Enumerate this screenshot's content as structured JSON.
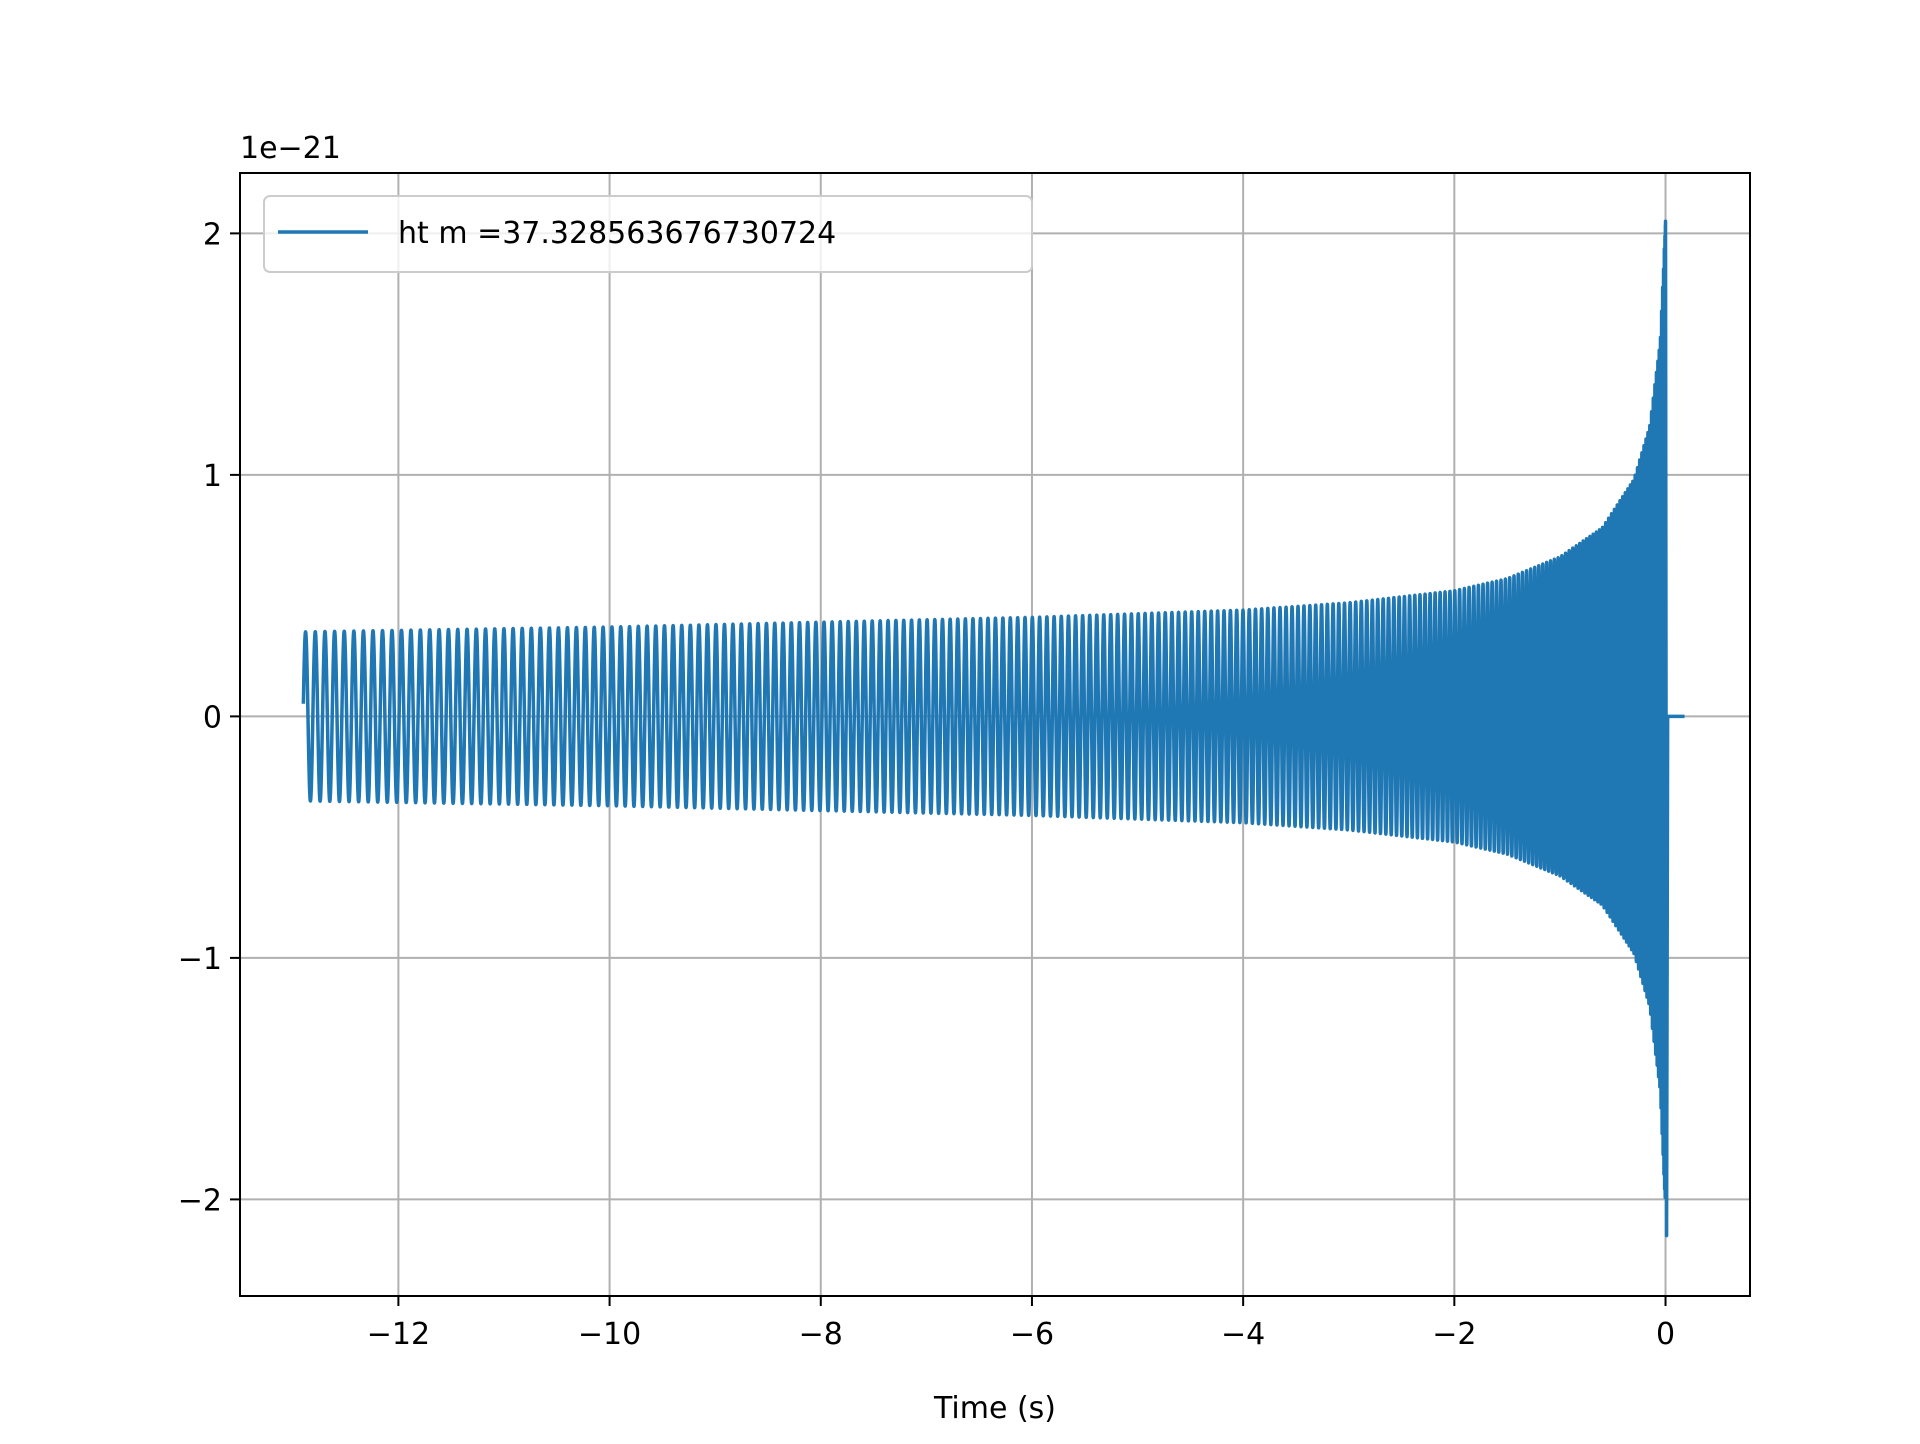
{
  "chart_data": {
    "type": "line",
    "title": "",
    "xlabel": "Time (s)",
    "ylabel": "",
    "y_offset_label": "1e−21",
    "xlim": [
      -13.5,
      0.8
    ],
    "ylim": [
      -2.4,
      2.25
    ],
    "xticks": [
      -12,
      -10,
      -8,
      -6,
      -4,
      -2,
      0
    ],
    "xtick_labels": [
      "−12",
      "−10",
      "−8",
      "−6",
      "−4",
      "−2",
      "0"
    ],
    "yticks": [
      -2,
      -1,
      0,
      1,
      2
    ],
    "ytick_labels": [
      "−2",
      "−1",
      "0",
      "1",
      "2"
    ],
    "grid": true,
    "legend_position": "top-left",
    "series": [
      {
        "name": "ht m =37.328563676730724",
        "color": "#1f77b4",
        "t_start": -12.9,
        "t_merger": 0.0,
        "t_end": 0.18,
        "cycles": 224,
        "envelope_t": [
          -12.9,
          -10,
          -8,
          -6,
          -4,
          -3,
          -2,
          -1.5,
          -1,
          -0.6,
          -0.3,
          -0.15,
          -0.05,
          0.0
        ],
        "envelope_amp": [
          0.35,
          0.37,
          0.39,
          0.41,
          0.44,
          0.47,
          0.52,
          0.57,
          0.66,
          0.78,
          0.98,
          1.2,
          1.55,
          2.05
        ]
      }
    ]
  }
}
